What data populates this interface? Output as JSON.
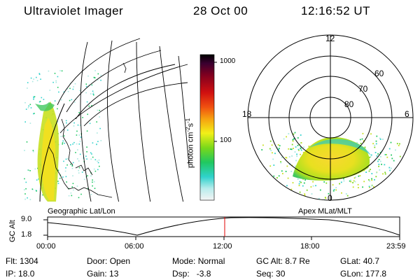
{
  "header": {
    "title": "Ultraviolet Imager",
    "date": "28 Oct 00",
    "time": "12:16:52 UT"
  },
  "colorbar": {
    "tick_1000": "1000",
    "tick_100": "100",
    "unit_prefix": "photon cm",
    "unit_exp1": "-2",
    "unit_mid": "s",
    "unit_exp2": "-1"
  },
  "polar_plot": {
    "mlt_labels": {
      "top": "12",
      "left": "18",
      "right": "6",
      "bottom": "0"
    },
    "lat_labels": [
      "60",
      "70",
      "80"
    ]
  },
  "subtitles": {
    "left": "Geographic Lat/Lon",
    "right": "Apex MLat/MLT"
  },
  "altitude_plot": {
    "axis_label": "GC Alt",
    "y_ticks": [
      "9.0",
      "1.8"
    ],
    "x_ticks": [
      "00:00",
      "06:00",
      "12:00",
      "18:00",
      "23:59"
    ],
    "current_time_marker": "12:16:52"
  },
  "footer": {
    "row1": [
      {
        "label": "Flt:",
        "value": "1304"
      },
      {
        "label": "Door:",
        "value": "Open"
      },
      {
        "label": "Mode:",
        "value": "Normal"
      },
      {
        "label": "GC Alt:",
        "value": "8.7 Re"
      },
      {
        "label": "GLat:",
        "value": "40.7"
      }
    ],
    "row2": [
      {
        "label": "IP:",
        "value": "18.0"
      },
      {
        "label": "Gain:",
        "value": "13"
      },
      {
        "label": "Dsp:",
        "value": "-3.8"
      },
      {
        "label": "Seq:",
        "value": "30"
      },
      {
        "label": "GLon:",
        "value": "177.8"
      }
    ]
  },
  "colors": {
    "marker": "#e00000",
    "axis": "#000000"
  }
}
